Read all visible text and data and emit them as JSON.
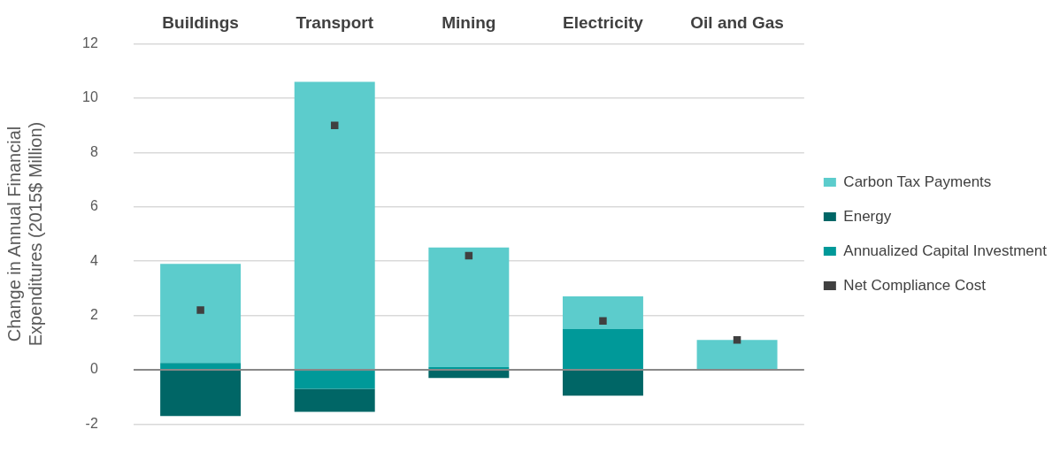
{
  "chart_data": {
    "type": "bar",
    "stacked": true,
    "categories": [
      "Buildings",
      "Transport",
      "Mining",
      "Electricity",
      "Oil and Gas"
    ],
    "ylabel": "Change in Annual Financial Expenditures (2015$ Million)",
    "ylim": [
      -2,
      12
    ],
    "yticks": [
      -2,
      0,
      2,
      4,
      6,
      8,
      10,
      12
    ],
    "grid": "y",
    "legend": "right",
    "series": [
      {
        "name": "Annualized Capital Investment",
        "color": "#009999",
        "values": [
          0.25,
          -0.7,
          0.1,
          1.5,
          0
        ]
      },
      {
        "name": "Energy",
        "color": "#006666",
        "values": [
          -1.7,
          -0.85,
          -0.3,
          -0.95,
          0
        ]
      },
      {
        "name": "Carbon Tax Payments",
        "color": "#5ccccc",
        "values": [
          3.65,
          10.6,
          4.4,
          1.2,
          1.1
        ]
      },
      {
        "name": "Net Compliance Cost",
        "type": "scatter",
        "marker": "square",
        "color": "#404040",
        "values": [
          2.2,
          9.0,
          4.2,
          1.8,
          1.1
        ]
      }
    ]
  }
}
